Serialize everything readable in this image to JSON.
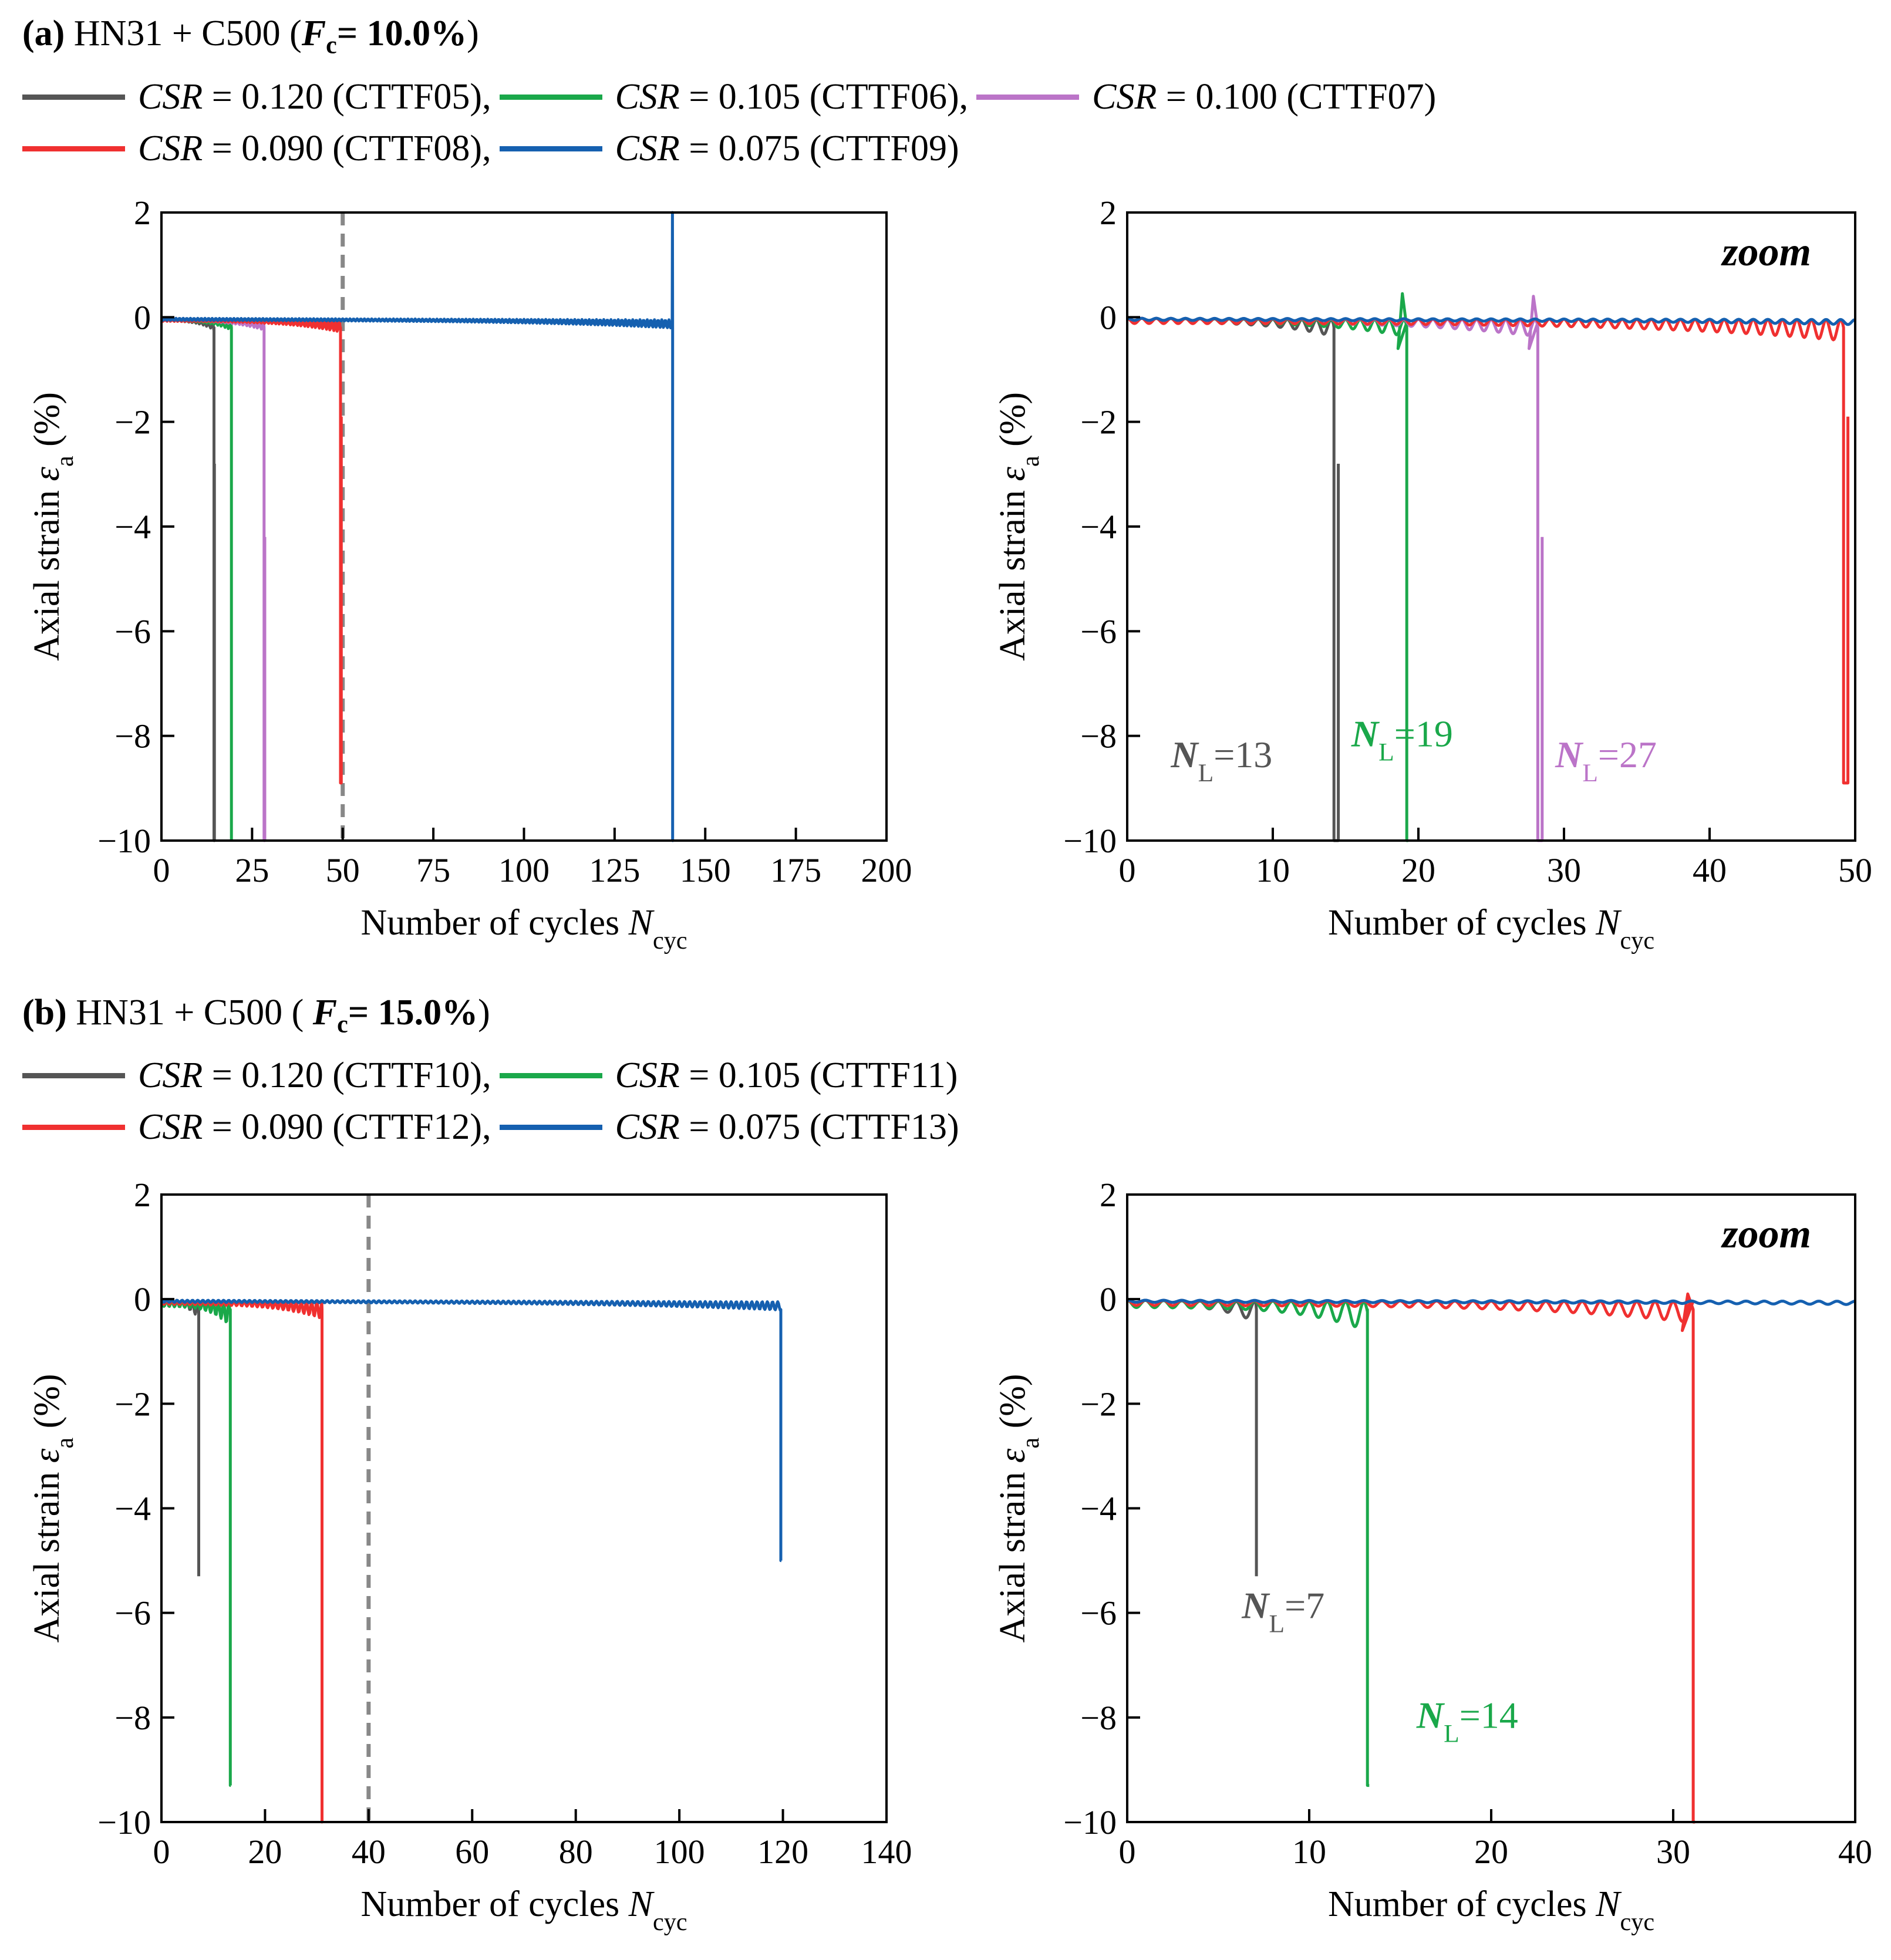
{
  "panels": [
    {
      "tag": "(a)",
      "title_main": "HN31 + C500 (",
      "fc_symbol": "F",
      "fc_sub": "c",
      "fc_value": "= 10.0%",
      "title_close": ")",
      "legend": [
        {
          "label": "CSR",
          "rest": " = 0.120 (CTTF05),",
          "color": "#555555"
        },
        {
          "label": "CSR",
          "rest": " = 0.105 (CTTF06),",
          "color": "#1aa84a"
        },
        {
          "label": "CSR",
          "rest": " = 0.100 (CTTF07)",
          "color": "#bb74c8"
        },
        {
          "label": "CSR",
          "rest": " = 0.090 (CTTF08),",
          "color": "#f03030"
        },
        {
          "label": "CSR",
          "rest": " = 0.075 (CTTF09)",
          "color": "#1560b0"
        }
      ]
    },
    {
      "tag": "(b)",
      "title_main": "HN31 + C500 ( ",
      "fc_symbol": "F",
      "fc_sub": "c",
      "fc_value": "= 15.0%",
      "title_close": ")",
      "legend": [
        {
          "label": "CSR",
          "rest": " = 0.120 (CTTF10),",
          "color": "#555555"
        },
        {
          "label": "CSR",
          "rest": " = 0.105 (CTTF11)",
          "color": "#1aa84a"
        },
        {
          "label": "CSR",
          "rest": " = 0.090 (CTTF12),",
          "color": "#f03030"
        },
        {
          "label": "CSR",
          "rest": " = 0.075 (CTTF13)",
          "color": "#1560b0"
        }
      ]
    }
  ],
  "chart_data": [
    {
      "id": "a-full",
      "type": "line",
      "xlabel_main": "Number of cycles ",
      "xlabel_sym": "N",
      "xlabel_sub": "cyc",
      "ylabel_main": "Axial strain ",
      "ylabel_sym": "ε",
      "ylabel_sub": "a",
      "ylabel_unit": " (%)",
      "xlim": [
        0,
        200
      ],
      "ylim": [
        -10,
        2
      ],
      "xticks": [
        0,
        25,
        50,
        75,
        100,
        125,
        150,
        175,
        200
      ],
      "yticks": [
        2,
        0,
        -2,
        -4,
        -6,
        -8,
        -10
      ],
      "dashed_x": 50,
      "zoom_label": "",
      "series": [
        {
          "name": "CTTF05",
          "color": "#555555",
          "nL": 13,
          "fail_x": 14.5,
          "last_x": 14.6,
          "end_val": -2.8,
          "min_val": -10,
          "amp": 0.05
        },
        {
          "name": "CTTF06",
          "color": "#1aa84a",
          "nL": 19,
          "fail_x": 19.3,
          "last_x": 19.3,
          "end_val": -10,
          "min_val": -10,
          "amp": 0.05
        },
        {
          "name": "CTTF07",
          "color": "#bb74c8",
          "nL": 27,
          "fail_x": 28.3,
          "last_x": 28.5,
          "end_val": -4.2,
          "min_val": -10,
          "amp": 0.05
        },
        {
          "name": "CTTF08",
          "color": "#f03030",
          "nL": 49,
          "fail_x": 49.4,
          "last_x": 49.6,
          "end_val": -1.9,
          "min_val": -8.9,
          "amp": 0.06
        },
        {
          "name": "CTTF09",
          "color": "#1560b0",
          "nL": 140,
          "fail_x": 141,
          "last_x": 141.2,
          "end_val": -10,
          "min_val": -10,
          "amp": 0.04,
          "spike": 2.0
        }
      ],
      "annotations": []
    },
    {
      "id": "a-zoom",
      "type": "line",
      "xlabel_main": "Number of cycles ",
      "xlabel_sym": "N",
      "xlabel_sub": "cyc",
      "ylabel_main": "Axial strain ",
      "ylabel_sym": "ε",
      "ylabel_sub": "a",
      "ylabel_unit": " (%)",
      "xlim": [
        0,
        50
      ],
      "ylim": [
        -10,
        2
      ],
      "xticks": [
        0,
        10,
        20,
        30,
        40,
        50
      ],
      "yticks": [
        2,
        0,
        -2,
        -4,
        -6,
        -8,
        -10
      ],
      "dashed_x": null,
      "zoom_label": "zoom",
      "series": [
        {
          "name": "CTTF05",
          "color": "#555555",
          "nL": 13,
          "fail_x": 14.2,
          "last_x": 14.5,
          "end_val": -2.8,
          "min_val": -10,
          "amp": 0.08
        },
        {
          "name": "CTTF06",
          "color": "#1aa84a",
          "nL": 19,
          "fail_x": 19.2,
          "last_x": 19.3,
          "end_val": -10,
          "min_val": -10,
          "amp": 0.08,
          "bump": 0.45
        },
        {
          "name": "CTTF07",
          "color": "#bb74c8",
          "nL": 27,
          "fail_x": 28.2,
          "last_x": 28.5,
          "end_val": -4.2,
          "min_val": -10,
          "amp": 0.08,
          "bump": 0.4
        },
        {
          "name": "CTTF08",
          "color": "#f03030",
          "nL": 49,
          "fail_x": 49.2,
          "last_x": 49.5,
          "end_val": -1.9,
          "min_val": -8.9,
          "amp": 0.1
        },
        {
          "name": "CTTF09",
          "color": "#1560b0",
          "nL": 140,
          "fail_x": 60,
          "last_x": 50,
          "end_val": 0,
          "min_val": 0,
          "amp": 0.04
        }
      ],
      "annotations": [
        {
          "sym": "N",
          "sub": "L",
          "text": "=13",
          "x": 3,
          "y": -8.6,
          "color": "#555555"
        },
        {
          "sym": "N",
          "sub": "L",
          "text": "=19",
          "x": 15.4,
          "y": -8.2,
          "color": "#1aa84a"
        },
        {
          "sym": "N",
          "sub": "L",
          "text": "=27",
          "x": 29.4,
          "y": -8.6,
          "color": "#bb74c8"
        }
      ]
    },
    {
      "id": "b-full",
      "type": "line",
      "xlabel_main": "Number of cycles ",
      "xlabel_sym": "N",
      "xlabel_sub": "cyc",
      "ylabel_main": "Axial strain ",
      "ylabel_sym": "ε",
      "ylabel_sub": "a",
      "ylabel_unit": " (%)",
      "xlim": [
        0,
        140
      ],
      "ylim": [
        -10,
        2
      ],
      "xticks": [
        0,
        20,
        40,
        60,
        80,
        100,
        120,
        140
      ],
      "yticks": [
        2,
        0,
        -2,
        -4,
        -6,
        -8,
        -10
      ],
      "dashed_x": 40,
      "zoom_label": "",
      "series": [
        {
          "name": "CTTF10",
          "color": "#555555",
          "nL": 7,
          "fail_x": 7.2,
          "last_x": 7.2,
          "end_val": -5.3,
          "min_val": -5.3,
          "amp": 0.08
        },
        {
          "name": "CTTF11",
          "color": "#1aa84a",
          "nL": 14,
          "fail_x": 13.3,
          "last_x": 13.4,
          "end_val": -9.3,
          "min_val": -9.3,
          "amp": 0.12
        },
        {
          "name": "CTTF12",
          "color": "#f03030",
          "nL": 30,
          "fail_x": 31,
          "last_x": 31.1,
          "end_val": -10,
          "min_val": -10,
          "amp": 0.08
        },
        {
          "name": "CTTF13",
          "color": "#1560b0",
          "nL": 119,
          "fail_x": 119.6,
          "last_x": 119.7,
          "end_val": -5.0,
          "min_val": -5.0,
          "amp": 0.04
        }
      ],
      "annotations": []
    },
    {
      "id": "b-zoom",
      "type": "line",
      "xlabel_main": "Number of cycles ",
      "xlabel_sym": "N",
      "xlabel_sub": "cyc",
      "ylabel_main": "Axial strain ",
      "ylabel_sym": "ε",
      "ylabel_sub": "a",
      "ylabel_unit": " (%)",
      "xlim": [
        0,
        40
      ],
      "ylim": [
        -10,
        2
      ],
      "xticks": [
        0,
        10,
        20,
        30,
        40
      ],
      "yticks": [
        2,
        0,
        -2,
        -4,
        -6,
        -8,
        -10
      ],
      "dashed_x": null,
      "zoom_label": "zoom",
      "series": [
        {
          "name": "CTTF10",
          "color": "#555555",
          "nL": 7,
          "fail_x": 7.1,
          "last_x": 7.1,
          "end_val": -5.3,
          "min_val": -5.3,
          "amp": 0.1
        },
        {
          "name": "CTTF11",
          "color": "#1aa84a",
          "nL": 14,
          "fail_x": 13.2,
          "last_x": 13.3,
          "end_val": -9.3,
          "min_val": -9.3,
          "amp": 0.14
        },
        {
          "name": "CTTF12",
          "color": "#f03030",
          "nL": 30,
          "fail_x": 31.1,
          "last_x": 31.2,
          "end_val": -10,
          "min_val": -10,
          "amp": 0.1,
          "bump": 0.1
        },
        {
          "name": "CTTF13",
          "color": "#1560b0",
          "nL": 119,
          "fail_x": 60,
          "last_x": 40,
          "end_val": 0,
          "min_val": 0,
          "amp": 0.04
        }
      ],
      "annotations": [
        {
          "sym": "N",
          "sub": "L",
          "text": "=7",
          "x": 6.3,
          "y": -6.1,
          "color": "#555555"
        },
        {
          "sym": "N",
          "sub": "L",
          "text": "=14",
          "x": 15.9,
          "y": -8.2,
          "color": "#1aa84a"
        }
      ]
    }
  ]
}
